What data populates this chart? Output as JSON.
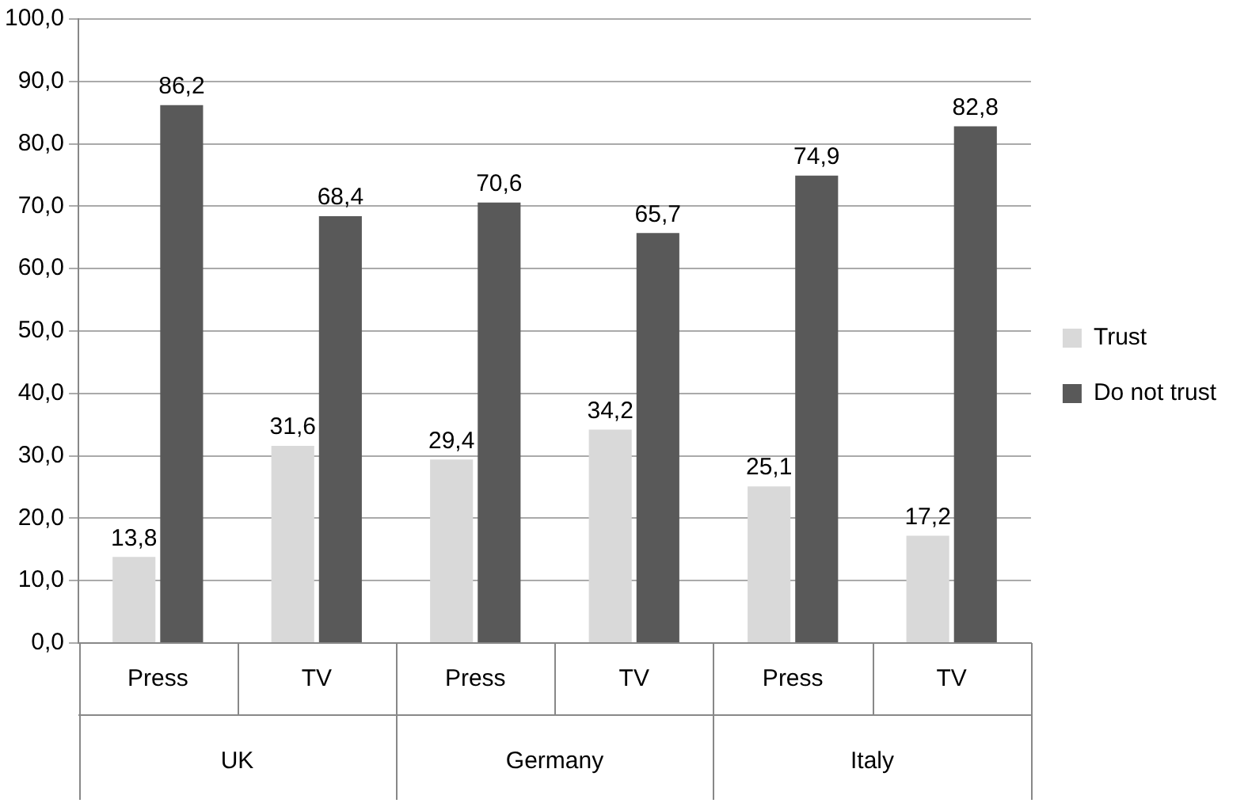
{
  "chart_data": {
    "type": "bar",
    "categories": [
      "Press",
      "TV",
      "Press",
      "TV",
      "Press",
      "TV"
    ],
    "series": [
      {
        "name": "Trust",
        "color": "#d9d9d9",
        "values": [
          13.8,
          31.6,
          29.4,
          34.2,
          25.1,
          17.2
        ],
        "value_labels": [
          "13,8",
          "31,6",
          "29,4",
          "34,2",
          "25,1",
          "17,2"
        ]
      },
      {
        "name": "Do not trust",
        "color": "#595959",
        "values": [
          86.2,
          68.4,
          70.6,
          65.7,
          74.9,
          82.8
        ],
        "value_labels": [
          "86,2",
          "68,4",
          "70,6",
          "65,7",
          "74,9",
          "82,8"
        ]
      }
    ],
    "annotations": [
      "UK",
      "Germany",
      "Italy"
    ],
    "ylim": [
      0,
      100
    ],
    "yticks": [
      {
        "value": 0,
        "label": "0,0"
      },
      {
        "value": 10,
        "label": "10,0"
      },
      {
        "value": 20,
        "label": "20,0"
      },
      {
        "value": 30,
        "label": "30,0"
      },
      {
        "value": 40,
        "label": "40,0"
      },
      {
        "value": 50,
        "label": "50,0"
      },
      {
        "value": 60,
        "label": "60,0"
      },
      {
        "value": 70,
        "label": "70,0"
      },
      {
        "value": 80,
        "label": "80,0"
      },
      {
        "value": 90,
        "label": "90,0"
      },
      {
        "value": 100,
        "label": "100,0"
      }
    ],
    "grid": "y",
    "legend": "right"
  }
}
